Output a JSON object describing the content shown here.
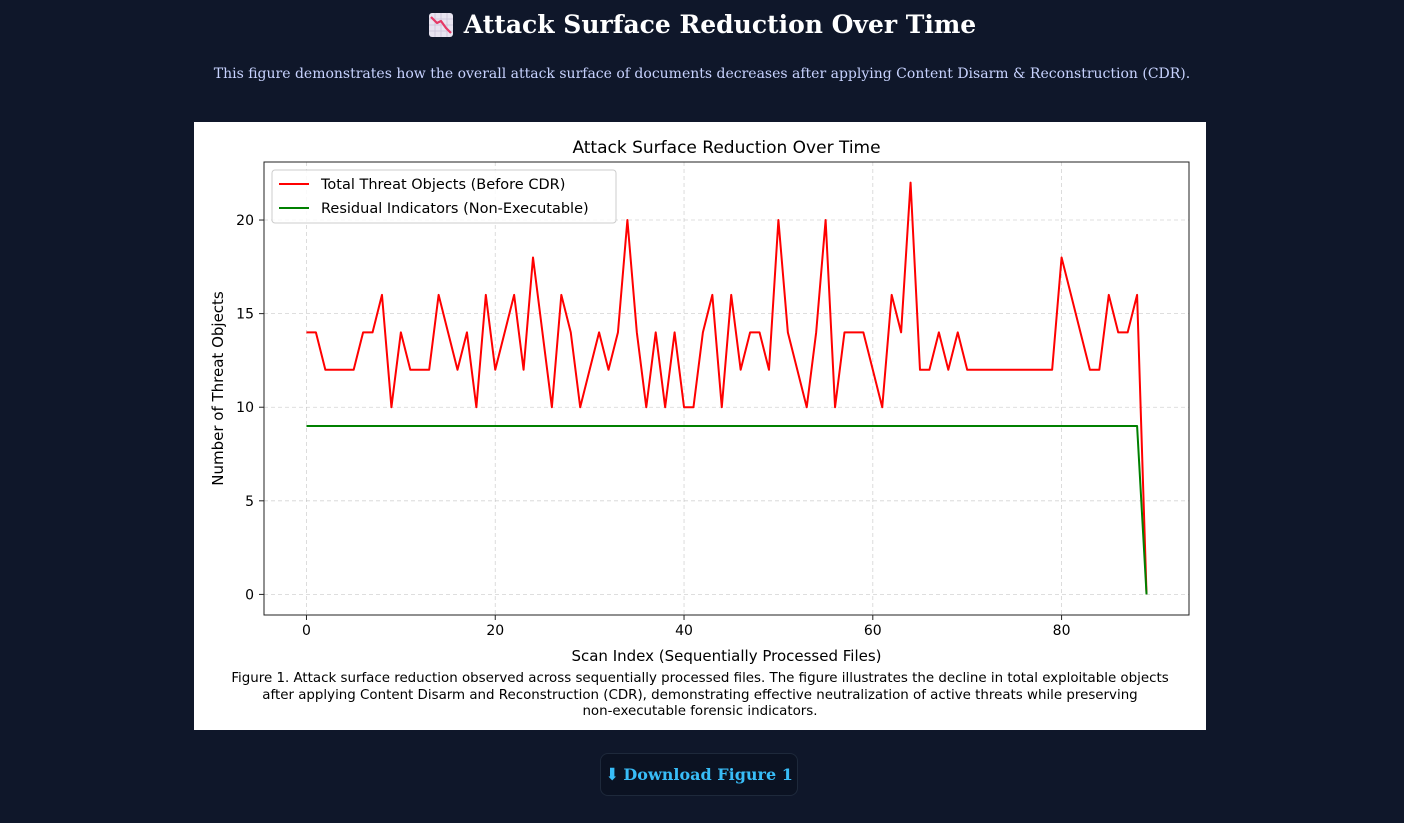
{
  "header": {
    "title": "Attack Surface Reduction Over Time",
    "icon": "chart-decreasing-icon",
    "description": "This figure demonstrates how the overall attack surface of documents decreases after applying Content Disarm & Reconstruction (CDR)."
  },
  "figure": {
    "caption_lines": [
      "Figure 1. Attack surface reduction observed across sequentially processed files. The figure illustrates the decline in total exploitable objects",
      "after applying Content Disarm and Reconstruction (CDR), demonstrating effective neutralization of active threats while preserving",
      "non-executable forensic indicators."
    ]
  },
  "download": {
    "label": "Download Figure 1",
    "icon": "download-arrow-icon"
  },
  "colors": {
    "background": "#0f172a",
    "accent": "#38bdf8",
    "series_total": "#ff0000",
    "series_residual": "#008000"
  },
  "chart_data": {
    "type": "line",
    "title": "Attack Surface Reduction Over Time",
    "xlabel": "Scan Index (Sequentially Processed Files)",
    "ylabel": "Number of Threat Objects",
    "xlim": [
      -4.5,
      93.5
    ],
    "ylim": [
      -1.1,
      23.1
    ],
    "xticks": [
      0,
      20,
      40,
      60,
      80
    ],
    "yticks": [
      0,
      5,
      10,
      15,
      20
    ],
    "grid": true,
    "legend": "upper-left",
    "x": [
      0,
      1,
      2,
      3,
      4,
      5,
      6,
      7,
      8,
      9,
      10,
      11,
      12,
      13,
      14,
      15,
      16,
      17,
      18,
      19,
      20,
      21,
      22,
      23,
      24,
      25,
      26,
      27,
      28,
      29,
      30,
      31,
      32,
      33,
      34,
      35,
      36,
      37,
      38,
      39,
      40,
      41,
      42,
      43,
      44,
      45,
      46,
      47,
      48,
      49,
      50,
      51,
      52,
      53,
      54,
      55,
      56,
      57,
      58,
      59,
      60,
      61,
      62,
      63,
      64,
      65,
      66,
      67,
      68,
      69,
      70,
      71,
      72,
      73,
      74,
      75,
      76,
      77,
      78,
      79,
      80,
      81,
      82,
      83,
      84,
      85,
      86,
      87,
      88,
      89
    ],
    "series": [
      {
        "name": "Total Threat Objects (Before CDR)",
        "color": "#ff0000",
        "values": [
          14,
          14,
          12,
          12,
          12,
          12,
          14,
          14,
          16,
          10,
          14,
          12,
          12,
          12,
          16,
          14,
          12,
          14,
          10,
          16,
          12,
          14,
          16,
          12,
          18,
          14,
          10,
          16,
          14,
          10,
          12,
          14,
          12,
          14,
          20,
          14,
          10,
          14,
          10,
          14,
          10,
          10,
          14,
          16,
          10,
          16,
          12,
          14,
          14,
          12,
          20,
          14,
          12,
          10,
          14,
          20,
          10,
          14,
          14,
          14,
          12,
          10,
          16,
          14,
          22,
          12,
          12,
          14,
          12,
          14,
          12,
          12,
          12,
          12,
          12,
          12,
          12,
          12,
          12,
          12,
          18,
          16,
          14,
          12,
          12,
          16,
          14,
          14,
          16,
          0
        ]
      },
      {
        "name": "Residual Indicators (Non-Executable)",
        "color": "#008000",
        "values": [
          9,
          9,
          9,
          9,
          9,
          9,
          9,
          9,
          9,
          9,
          9,
          9,
          9,
          9,
          9,
          9,
          9,
          9,
          9,
          9,
          9,
          9,
          9,
          9,
          9,
          9,
          9,
          9,
          9,
          9,
          9,
          9,
          9,
          9,
          9,
          9,
          9,
          9,
          9,
          9,
          9,
          9,
          9,
          9,
          9,
          9,
          9,
          9,
          9,
          9,
          9,
          9,
          9,
          9,
          9,
          9,
          9,
          9,
          9,
          9,
          9,
          9,
          9,
          9,
          9,
          9,
          9,
          9,
          9,
          9,
          9,
          9,
          9,
          9,
          9,
          9,
          9,
          9,
          9,
          9,
          9,
          9,
          9,
          9,
          9,
          9,
          9,
          9,
          9,
          0
        ]
      }
    ]
  }
}
